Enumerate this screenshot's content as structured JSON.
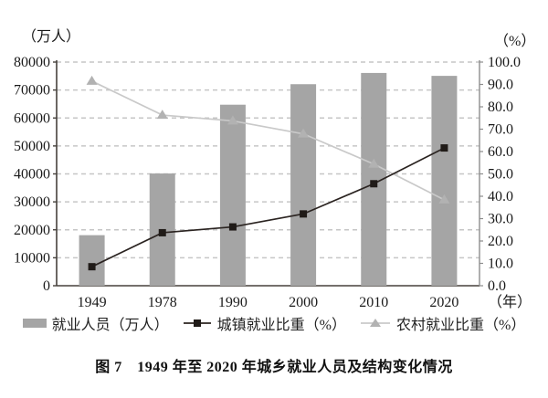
{
  "chart": {
    "left_unit": "（万人）",
    "right_unit": "（%）",
    "x_unit": "（年）"
  },
  "legend": {
    "items": [
      {
        "label": "就业人员（万人）",
        "marker": "bar-swatch"
      },
      {
        "label": "城镇就业比重（%）",
        "marker": "square-line"
      },
      {
        "label": "农村就业比重（%）",
        "marker": "triangle-line"
      }
    ]
  },
  "caption": "图 7　1949 年至 2020 年城乡就业人员及结构变化情况",
  "colors": {
    "bar": "#a5a5a5",
    "urban_line": "#2b2421",
    "urban_marker": "#201b18",
    "rural_line": "#c9c9c9",
    "rural_marker": "#b2b2b2",
    "grid": "#c6c6c6",
    "axis": "#46413c",
    "right_axis": "#8d8d8d",
    "text": "#1a1a1a"
  },
  "chart_data": {
    "type": "bar",
    "subtype": "bar+line combo, dual axis",
    "title": "图 7　1949 年至 2020 年城乡就业人员及结构变化情况",
    "categories": [
      "1949",
      "1978",
      "1990",
      "2000",
      "2010",
      "2020"
    ],
    "series": [
      {
        "name": "就业人员（万人）",
        "type": "bar",
        "axis": "left",
        "values": [
          18082,
          40152,
          64749,
          72085,
          76105,
          75064
        ]
      },
      {
        "name": "城镇就业比重（%）",
        "type": "line",
        "axis": "right",
        "marker": "square",
        "values": [
          8.5,
          23.7,
          26.3,
          32.1,
          45.6,
          61.6
        ]
      },
      {
        "name": "农村就业比重（%）",
        "type": "line",
        "axis": "right",
        "marker": "triangle",
        "values": [
          91.5,
          76.3,
          73.7,
          67.9,
          54.4,
          38.4
        ]
      }
    ],
    "left_axis": {
      "label": "（万人）",
      "min": 0,
      "max": 80000,
      "step": 10000
    },
    "right_axis": {
      "label": "（%）",
      "min": 0,
      "max": 100,
      "step": 10,
      "tick_format": "0.0"
    },
    "x_axis_label": "（年）",
    "grid": "horizontal dashed",
    "legend_position": "bottom"
  }
}
